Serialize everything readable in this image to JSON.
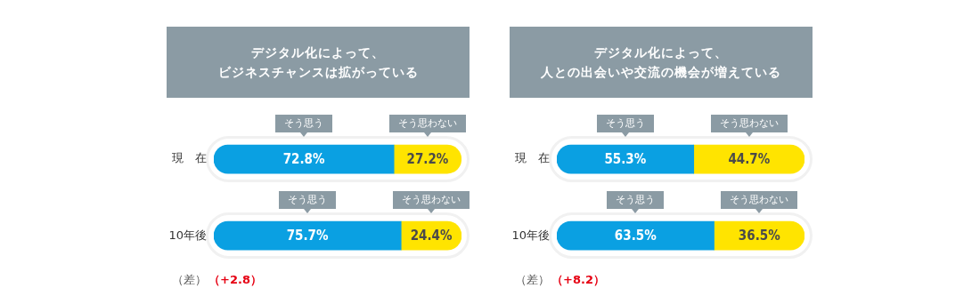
{
  "chart_data": [
    {
      "type": "bar",
      "orientation": "horizontal",
      "stacked": true,
      "title": "デジタル化によって、ビジネスチャンスは拡がっている",
      "categories": [
        "現　在",
        "10年後"
      ],
      "legend": false,
      "grid": false,
      "tick_labels": "y",
      "series": [
        {
          "name": "そう思う",
          "color": "#0aa0e2",
          "values": [
            72.8,
            75.7
          ],
          "value_labels": [
            "72.8%",
            "75.7%"
          ]
        },
        {
          "name": "そう思わない",
          "color": "#ffe400",
          "values": [
            27.2,
            24.4
          ],
          "value_labels": [
            "27.2%",
            "24.4%"
          ]
        }
      ],
      "annotations": [
        "（差）",
        "（+2.8）"
      ]
    },
    {
      "type": "bar",
      "orientation": "horizontal",
      "stacked": true,
      "title": "デジタル化によって、人との出会いや交流の機会が増えている",
      "categories": [
        "現　在",
        "10年後"
      ],
      "legend": false,
      "grid": false,
      "tick_labels": "y",
      "series": [
        {
          "name": "そう思う",
          "color": "#0aa0e2",
          "values": [
            55.3,
            63.5
          ],
          "value_labels": [
            "55.3%",
            "63.5%"
          ]
        },
        {
          "name": "そう思わない",
          "color": "#ffe400",
          "values": [
            44.7,
            36.5
          ],
          "value_labels": [
            "44.7%",
            "36.5%"
          ]
        }
      ],
      "annotations": [
        "（差）",
        "（+8.2）"
      ]
    }
  ]
}
